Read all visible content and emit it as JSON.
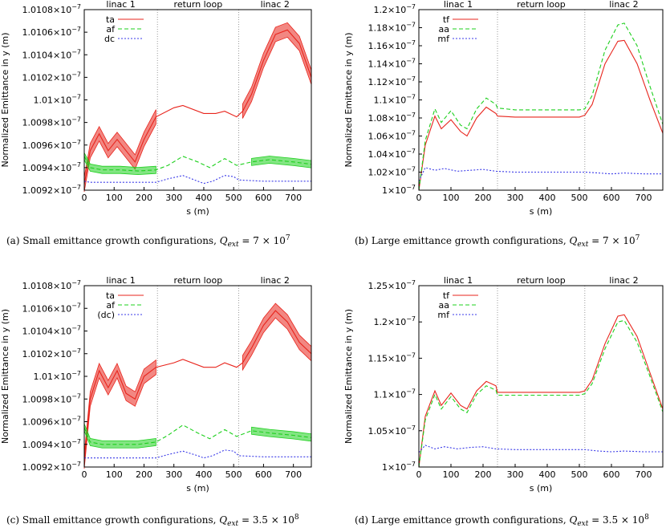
{
  "colors": {
    "ta": "#e8241c",
    "af": "#1ed01e",
    "dc": "#3a3ae8",
    "divider": "#9a9a9a"
  },
  "chart_data": [
    {
      "type": "line",
      "ylabel": "Normalized Emittance in y (m)",
      "xlabel": "s (m)",
      "xlim": [
        0,
        760
      ],
      "ylim": [
        1.0092,
        1.0108
      ],
      "exponent": "−7",
      "x_ticks": [
        "0",
        "100",
        "200",
        "300",
        "400",
        "500",
        "600",
        "700"
      ],
      "y_ticks": [
        "1.0092",
        "1.0094",
        "1.0096",
        "1.0098",
        "1.01",
        "1.0102",
        "1.0104",
        "1.0106",
        "1.0108"
      ],
      "y_tick_values": [
        1.0092,
        1.0094,
        1.0096,
        1.0098,
        1.01,
        1.0102,
        1.0104,
        1.0106,
        1.0108
      ],
      "regions": [
        {
          "label": "linac 1",
          "start": 0,
          "end": 245
        },
        {
          "label": "return loop",
          "start": 245,
          "end": 517
        },
        {
          "label": "linac 2",
          "start": 517,
          "end": 760
        }
      ],
      "legend_position": "top-left",
      "series": [
        {
          "name": "ta",
          "style": "solid",
          "color": "#e8241c",
          "band": [
            0,
            245,
            517,
            760
          ],
          "x": [
            0,
            20,
            50,
            80,
            110,
            140,
            170,
            200,
            240,
            300,
            330,
            400,
            440,
            470,
            510,
            530,
            560,
            600,
            640,
            680,
            720,
            760
          ],
          "y": [
            1.00925,
            1.00955,
            1.0097,
            1.00955,
            1.00965,
            1.00955,
            1.00945,
            1.00965,
            1.00985,
            1.00993,
            1.00995,
            1.00988,
            1.00988,
            1.0099,
            1.00985,
            1.0099,
            1.01005,
            1.01035,
            1.01058,
            1.01062,
            1.0105,
            1.0102
          ]
        },
        {
          "name": "af",
          "style": "dashed",
          "color": "#1ed01e",
          "band": [
            0,
            245,
            517,
            760
          ],
          "x": [
            0,
            20,
            60,
            120,
            180,
            240,
            280,
            330,
            380,
            420,
            470,
            510,
            560,
            620,
            700,
            760
          ],
          "y": [
            1.0095,
            1.0094,
            1.00938,
            1.00938,
            1.00937,
            1.00938,
            1.00942,
            1.0095,
            1.00945,
            1.0094,
            1.00948,
            1.00942,
            1.00945,
            1.00947,
            1.00945,
            1.00943
          ]
        },
        {
          "name": "dc",
          "style": "dotted",
          "color": "#3a3ae8",
          "x": [
            0,
            20,
            100,
            240,
            280,
            330,
            380,
            400,
            430,
            470,
            500,
            517,
            600,
            700,
            760
          ],
          "y": [
            1.00928,
            1.00927,
            1.00927,
            1.00927,
            1.0093,
            1.00933,
            1.00928,
            1.00926,
            1.00928,
            1.00933,
            1.00932,
            1.00929,
            1.00928,
            1.00928,
            1.00928
          ]
        }
      ],
      "caption": {
        "text": "(a) Small emittance growth configurations, ",
        "math": "Q",
        "sub": "ext",
        "rest": " = 7 × 10",
        "sup": "7"
      }
    },
    {
      "type": "line",
      "ylabel": "Normalized Emittance in y (m)",
      "xlabel": "s (m)",
      "xlim": [
        0,
        760
      ],
      "ylim": [
        1.0,
        1.2
      ],
      "exponent": "−7",
      "x_ticks": [
        "0",
        "100",
        "200",
        "300",
        "400",
        "500",
        "600",
        "700"
      ],
      "y_ticks": [
        "1",
        "1.02",
        "1.04",
        "1.06",
        "1.08",
        "1.1",
        "1.12",
        "1.14",
        "1.16",
        "1.18",
        "1.2"
      ],
      "y_tick_values": [
        1.0,
        1.02,
        1.04,
        1.06,
        1.08,
        1.1,
        1.12,
        1.14,
        1.16,
        1.18,
        1.2
      ],
      "regions": [
        {
          "label": "linac 1",
          "start": 0,
          "end": 245
        },
        {
          "label": "return loop",
          "start": 245,
          "end": 517
        },
        {
          "label": "linac 2",
          "start": 517,
          "end": 760
        }
      ],
      "legend_position": "top-left",
      "series": [
        {
          "name": "tf",
          "style": "solid",
          "color": "#e8241c",
          "x": [
            0,
            20,
            50,
            70,
            100,
            130,
            150,
            180,
            210,
            240,
            245,
            300,
            400,
            500,
            517,
            540,
            580,
            620,
            640,
            680,
            720,
            760
          ],
          "y": [
            1.0,
            1.05,
            1.082,
            1.068,
            1.078,
            1.065,
            1.06,
            1.08,
            1.092,
            1.085,
            1.082,
            1.081,
            1.081,
            1.081,
            1.083,
            1.095,
            1.14,
            1.165,
            1.166,
            1.14,
            1.1,
            1.063
          ]
        },
        {
          "name": "aa",
          "style": "dashed",
          "color": "#1ed01e",
          "x": [
            0,
            20,
            50,
            70,
            100,
            130,
            150,
            180,
            210,
            240,
            245,
            300,
            400,
            500,
            517,
            540,
            580,
            620,
            640,
            680,
            720,
            760
          ],
          "y": [
            1.0,
            1.055,
            1.09,
            1.075,
            1.088,
            1.072,
            1.068,
            1.09,
            1.102,
            1.095,
            1.091,
            1.089,
            1.089,
            1.089,
            1.09,
            1.105,
            1.155,
            1.183,
            1.185,
            1.16,
            1.115,
            1.073
          ]
        },
        {
          "name": "mf",
          "style": "dotted",
          "color": "#3a3ae8",
          "x": [
            0,
            20,
            50,
            80,
            120,
            160,
            200,
            240,
            300,
            400,
            517,
            560,
            600,
            640,
            700,
            760
          ],
          "y": [
            1.01,
            1.025,
            1.022,
            1.024,
            1.021,
            1.022,
            1.023,
            1.021,
            1.02,
            1.02,
            1.02,
            1.019,
            1.018,
            1.019,
            1.018,
            1.018
          ]
        }
      ],
      "caption": {
        "text": "(b) Large emittance growth configurations, ",
        "math": "Q",
        "sub": "ext",
        "rest": " = 7 × 10",
        "sup": "7"
      }
    },
    {
      "type": "line",
      "ylabel": "Normalized Emittance in y (m)",
      "xlabel": "s (m)",
      "xlim": [
        0,
        760
      ],
      "ylim": [
        1.0092,
        1.0108
      ],
      "exponent": "−7",
      "x_ticks": [
        "0",
        "100",
        "200",
        "300",
        "400",
        "500",
        "600",
        "700"
      ],
      "y_ticks": [
        "1.0092",
        "1.0094",
        "1.0096",
        "1.0098",
        "1.01",
        "1.0102",
        "1.0104",
        "1.0106",
        "1.0108"
      ],
      "y_tick_values": [
        1.0092,
        1.0094,
        1.0096,
        1.0098,
        1.01,
        1.0102,
        1.0104,
        1.0106,
        1.0108
      ],
      "regions": [
        {
          "label": "linac 1",
          "start": 0,
          "end": 245
        },
        {
          "label": "return loop",
          "start": 245,
          "end": 517
        },
        {
          "label": "linac 2",
          "start": 517,
          "end": 760
        }
      ],
      "legend_position": "top-left",
      "series": [
        {
          "name": "ta",
          "style": "solid",
          "color": "#e8241c",
          "band": [
            0,
            245,
            517,
            760
          ],
          "x": [
            0,
            20,
            50,
            80,
            110,
            140,
            170,
            200,
            240,
            300,
            330,
            400,
            440,
            470,
            510,
            530,
            560,
            600,
            640,
            680,
            720,
            760
          ],
          "y": [
            1.00925,
            1.0098,
            1.01005,
            1.0099,
            1.01005,
            1.00985,
            1.0098,
            1.01,
            1.01008,
            1.01012,
            1.01015,
            1.01008,
            1.01008,
            1.01012,
            1.01008,
            1.01012,
            1.01025,
            1.01045,
            1.01058,
            1.01048,
            1.0103,
            1.0102
          ]
        },
        {
          "name": "af",
          "style": "dashed",
          "color": "#1ed01e",
          "band": [
            0,
            245,
            517,
            760
          ],
          "x": [
            0,
            20,
            60,
            120,
            180,
            240,
            280,
            330,
            380,
            420,
            470,
            510,
            560,
            620,
            700,
            760
          ],
          "y": [
            1.00955,
            1.00942,
            1.0094,
            1.0094,
            1.0094,
            1.00942,
            1.00948,
            1.00957,
            1.0095,
            1.00945,
            1.00953,
            1.00947,
            1.00952,
            1.0095,
            1.00948,
            1.00946
          ]
        },
        {
          "name": "(dc)",
          "style": "dotted",
          "color": "#3a3ae8",
          "x": [
            0,
            20,
            100,
            240,
            280,
            330,
            380,
            400,
            430,
            470,
            500,
            517,
            600,
            700,
            760
          ],
          "y": [
            1.00928,
            1.00928,
            1.00928,
            1.00928,
            1.00931,
            1.00934,
            1.0093,
            1.00928,
            1.0093,
            1.00935,
            1.00934,
            1.0093,
            1.00929,
            1.00929,
            1.00929
          ]
        }
      ],
      "caption": {
        "text": "(c) Small emittance growth configurations, ",
        "math": "Q",
        "sub": "ext",
        "rest": " = 3.5 × 10",
        "sup": "8"
      }
    },
    {
      "type": "line",
      "ylabel": "Normalized Emittance in y (m)",
      "xlabel": "s (m)",
      "xlim": [
        0,
        760
      ],
      "ylim": [
        1.0,
        1.25
      ],
      "exponent": "−7",
      "x_ticks": [
        "0",
        "100",
        "200",
        "300",
        "400",
        "500",
        "600",
        "700"
      ],
      "y_ticks": [
        "1",
        "1.05",
        "1.1",
        "1.15",
        "1.2",
        "1.25"
      ],
      "y_tick_values": [
        1.0,
        1.05,
        1.1,
        1.15,
        1.2,
        1.25
      ],
      "regions": [
        {
          "label": "linac 1",
          "start": 0,
          "end": 245
        },
        {
          "label": "return loop",
          "start": 245,
          "end": 517
        },
        {
          "label": "linac 2",
          "start": 517,
          "end": 760
        }
      ],
      "legend_position": "top-left",
      "series": [
        {
          "name": "tf",
          "style": "solid",
          "color": "#e8241c",
          "x": [
            0,
            20,
            50,
            70,
            100,
            130,
            150,
            180,
            210,
            240,
            245,
            300,
            400,
            500,
            517,
            540,
            580,
            620,
            640,
            680,
            720,
            760
          ],
          "y": [
            1.0,
            1.07,
            1.105,
            1.085,
            1.102,
            1.085,
            1.08,
            1.105,
            1.118,
            1.112,
            1.103,
            1.103,
            1.103,
            1.103,
            1.105,
            1.12,
            1.17,
            1.208,
            1.21,
            1.18,
            1.13,
            1.08
          ]
        },
        {
          "name": "aa",
          "style": "dashed",
          "color": "#1ed01e",
          "x": [
            0,
            20,
            50,
            70,
            100,
            130,
            150,
            180,
            210,
            240,
            245,
            300,
            400,
            500,
            517,
            540,
            580,
            620,
            640,
            680,
            720,
            760
          ],
          "y": [
            1.0,
            1.065,
            1.1,
            1.08,
            1.097,
            1.08,
            1.075,
            1.1,
            1.112,
            1.106,
            1.099,
            1.099,
            1.099,
            1.099,
            1.101,
            1.115,
            1.163,
            1.2,
            1.202,
            1.172,
            1.125,
            1.076
          ]
        },
        {
          "name": "mf",
          "style": "dotted",
          "color": "#3a3ae8",
          "x": [
            0,
            20,
            50,
            80,
            120,
            160,
            200,
            240,
            300,
            400,
            517,
            560,
            600,
            640,
            700,
            760
          ],
          "y": [
            1.02,
            1.03,
            1.025,
            1.028,
            1.025,
            1.027,
            1.028,
            1.025,
            1.024,
            1.024,
            1.024,
            1.022,
            1.021,
            1.022,
            1.021,
            1.021
          ]
        }
      ],
      "caption": {
        "text": "(d) Large emittance growth configurations, ",
        "math": "Q",
        "sub": "ext",
        "rest": " = 3.5 × 10",
        "sup": "8"
      }
    }
  ]
}
